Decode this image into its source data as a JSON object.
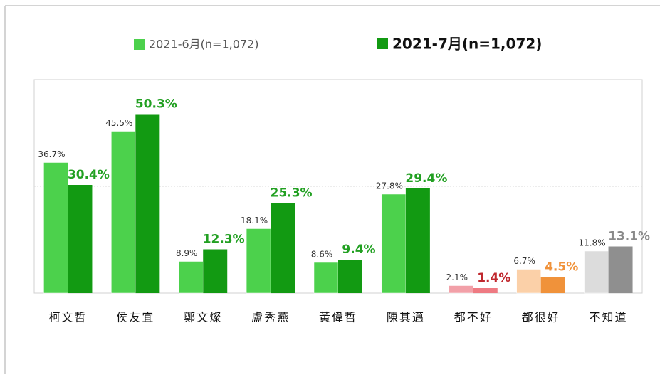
{
  "chart_data": {
    "type": "bar",
    "categories": [
      "柯文哲",
      "侯友宜",
      "鄭文燦",
      "盧秀燕",
      "黃偉哲",
      "陳其邁",
      "都不好",
      "都很好",
      "不知道"
    ],
    "series": [
      {
        "name": "2021-6月(n=1,072)",
        "color": "#4cd14c",
        "colors": [
          "#4cd14c",
          "#4cd14c",
          "#4cd14c",
          "#4cd14c",
          "#4cd14c",
          "#4cd14c",
          "#f2a0a8",
          "#fbd0a8",
          "#dcdcdc"
        ],
        "label_colors": [
          "#333333",
          "#333333",
          "#333333",
          "#333333",
          "#333333",
          "#333333",
          "#333333",
          "#333333",
          "#333333"
        ],
        "values": [
          36.7,
          45.5,
          8.9,
          18.1,
          8.6,
          27.8,
          2.1,
          6.7,
          11.8
        ],
        "value_labels": [
          "36.7%",
          "45.5%",
          "8.9%",
          "18.1%",
          "8.6%",
          "27.8%",
          "2.1%",
          "6.7%",
          "11.8%"
        ]
      },
      {
        "name": "2021-7月(n=1,072)",
        "color": "#129a12",
        "colors": [
          "#129a12",
          "#129a12",
          "#129a12",
          "#129a12",
          "#129a12",
          "#129a12",
          "#ee7a82",
          "#f0923a",
          "#8f8f8f"
        ],
        "label_colors": [
          "#22a022",
          "#22a022",
          "#22a022",
          "#22a022",
          "#22a022",
          "#22a022",
          "#c0282e",
          "#f0923a",
          "#8a8a8a"
        ],
        "values": [
          30.4,
          50.3,
          12.3,
          25.3,
          9.4,
          29.4,
          1.4,
          4.5,
          13.1
        ],
        "value_labels": [
          "30.4%",
          "50.3%",
          "12.3%",
          "25.3%",
          "9.4%",
          "29.4%",
          "1.4%",
          "4.5%",
          "13.1%"
        ]
      }
    ],
    "ylim": [
      0,
      60
    ],
    "gridlines": [
      30
    ]
  }
}
